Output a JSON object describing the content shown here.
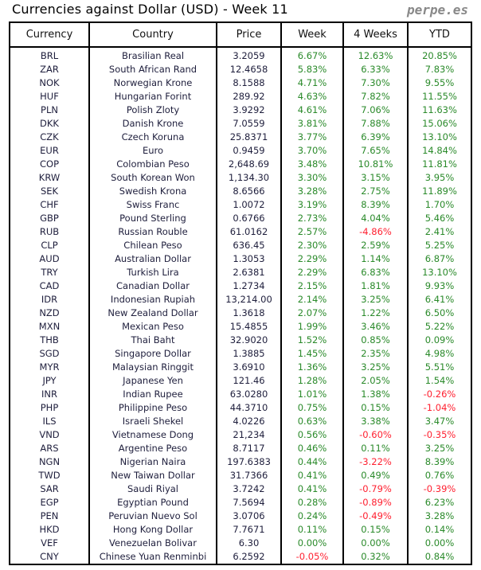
{
  "title": "Currencies against Dollar (USD) - Week 11",
  "brand": "perpe.es",
  "colors": {
    "positive": "#2a8a2a",
    "negative": "#ff2030"
  },
  "headers": [
    "Currency",
    "Country",
    "Price",
    "Week",
    "4 Weeks",
    "YTD"
  ],
  "rows": [
    [
      "BRL",
      "Brasilian Real",
      "3.2059",
      "6.67%",
      "12.63%",
      "20.85%"
    ],
    [
      "ZAR",
      "South African Rand",
      "12.4658",
      "5.83%",
      "6.33%",
      "7.83%"
    ],
    [
      "NOK",
      "Norwegian Krone",
      "8.1588",
      "4.71%",
      "7.30%",
      "9.55%"
    ],
    [
      "HUF",
      "Hungarian Forint",
      "289.92",
      "4.63%",
      "7.82%",
      "11.55%"
    ],
    [
      "PLN",
      "Polish Zloty",
      "3.9292",
      "4.61%",
      "7.06%",
      "11.63%"
    ],
    [
      "DKK",
      "Danish Krone",
      "7.0559",
      "3.81%",
      "7.88%",
      "15.06%"
    ],
    [
      "CZK",
      "Czech Koruna",
      "25.8371",
      "3.77%",
      "6.39%",
      "13.10%"
    ],
    [
      "EUR",
      "Euro",
      "0.9459",
      "3.70%",
      "7.65%",
      "14.84%"
    ],
    [
      "COP",
      "Colombian Peso",
      "2,648.69",
      "3.48%",
      "10.81%",
      "11.81%"
    ],
    [
      "KRW",
      "South Korean Won",
      "1,134.30",
      "3.30%",
      "3.15%",
      "3.95%"
    ],
    [
      "SEK",
      "Swedish Krona",
      "8.6566",
      "3.28%",
      "2.75%",
      "11.89%"
    ],
    [
      "CHF",
      "Swiss Franc",
      "1.0072",
      "3.19%",
      "8.39%",
      "1.70%"
    ],
    [
      "GBP",
      "Pound Sterling",
      "0.6766",
      "2.73%",
      "4.04%",
      "5.46%"
    ],
    [
      "RUB",
      "Russian Rouble",
      "61.0162",
      "2.57%",
      "-4.86%",
      "2.41%"
    ],
    [
      "CLP",
      "Chilean Peso",
      "636.45",
      "2.30%",
      "2.59%",
      "5.25%"
    ],
    [
      "AUD",
      "Australian Dollar",
      "1.3053",
      "2.29%",
      "1.14%",
      "6.87%"
    ],
    [
      "TRY",
      "Turkish Lira",
      "2.6381",
      "2.29%",
      "6.83%",
      "13.10%"
    ],
    [
      "CAD",
      "Canadian Dollar",
      "1.2734",
      "2.15%",
      "1.81%",
      "9.93%"
    ],
    [
      "IDR",
      "Indonesian Rupiah",
      "13,214.00",
      "2.14%",
      "3.25%",
      "6.41%"
    ],
    [
      "NZD",
      "New Zealand Dollar",
      "1.3618",
      "2.07%",
      "1.22%",
      "6.50%"
    ],
    [
      "MXN",
      "Mexican Peso",
      "15.4855",
      "1.99%",
      "3.46%",
      "5.22%"
    ],
    [
      "THB",
      "Thai Baht",
      "32.9020",
      "1.52%",
      "0.85%",
      "0.09%"
    ],
    [
      "SGD",
      "Singapore Dollar",
      "1.3885",
      "1.45%",
      "2.35%",
      "4.98%"
    ],
    [
      "MYR",
      "Malaysian Ringgit",
      "3.6910",
      "1.36%",
      "3.25%",
      "5.51%"
    ],
    [
      "JPY",
      "Japanese Yen",
      "121.46",
      "1.28%",
      "2.05%",
      "1.54%"
    ],
    [
      "INR",
      "Indian Rupee",
      "63.0280",
      "1.01%",
      "1.38%",
      "-0.26%"
    ],
    [
      "PHP",
      "Philippine Peso",
      "44.3710",
      "0.75%",
      "0.15%",
      "-1.04%"
    ],
    [
      "ILS",
      "Israeli Shekel",
      "4.0226",
      "0.63%",
      "3.38%",
      "3.47%"
    ],
    [
      "VND",
      "Vietnamese Dong",
      "21,234",
      "0.56%",
      "-0.60%",
      "-0.35%"
    ],
    [
      "ARS",
      "Argentine Peso",
      "8.7117",
      "0.46%",
      "0.11%",
      "3.25%"
    ],
    [
      "NGN",
      "Nigerian Naira",
      "197.6383",
      "0.44%",
      "-3.22%",
      "8.39%"
    ],
    [
      "TWD",
      "New Taiwan Dollar",
      "31.7366",
      "0.41%",
      "0.49%",
      "0.76%"
    ],
    [
      "SAR",
      "Saudi Riyal",
      "3.7242",
      "0.41%",
      "-0.79%",
      "-0.39%"
    ],
    [
      "EGP",
      "Egyptian Pound",
      "7.5694",
      "0.28%",
      "-0.89%",
      "6.23%"
    ],
    [
      "PEN",
      "Peruvian Nuevo Sol",
      "3.0706",
      "0.24%",
      "-0.49%",
      "3.28%"
    ],
    [
      "HKD",
      "Hong Kong Dollar",
      "7.7671",
      "0.11%",
      "0.15%",
      "0.14%"
    ],
    [
      "VEF",
      "Venezuelan Bolivar",
      "6.30",
      "0.00%",
      "0.00%",
      "0.00%"
    ],
    [
      "CNY",
      "Chinese Yuan Renminbi",
      "6.2592",
      "-0.05%",
      "0.32%",
      "0.84%"
    ]
  ]
}
